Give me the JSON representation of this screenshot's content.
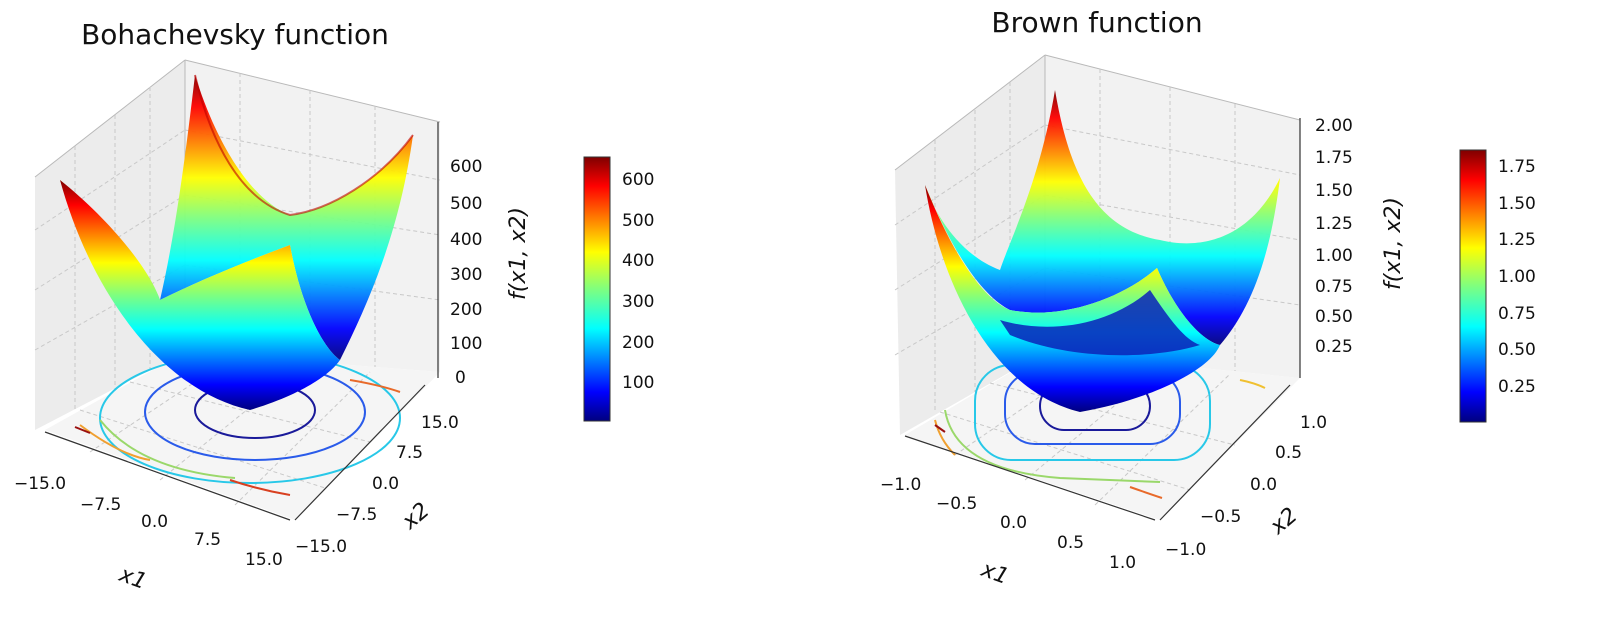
{
  "chart_data": [
    {
      "type": "surface3d",
      "title": "Bohachevsky function",
      "xlabel": "x1",
      "ylabel": "x2",
      "zlabel": "f(x1, x2)",
      "x_ticks": [
        "−15.0",
        "−7.5",
        "0.0",
        "7.5",
        "15.0"
      ],
      "y_ticks": [
        "−15.0",
        "−7.5",
        "0.0",
        "7.5",
        "15.0"
      ],
      "z_ticks": [
        "0",
        "100",
        "200",
        "300",
        "400",
        "500",
        "600"
      ],
      "xlim": [
        -17,
        17
      ],
      "ylim": [
        -17,
        17
      ],
      "zlim": [
        0,
        650
      ],
      "colorbar_ticks": [
        "100",
        "200",
        "300",
        "400",
        "500",
        "600"
      ],
      "colorbar_range": [
        0,
        650
      ],
      "colormap": "jet",
      "contours": true
    },
    {
      "type": "surface3d",
      "title": "Brown function",
      "xlabel": "x1",
      "ylabel": "x2",
      "zlabel": "f(x1, x2)",
      "x_ticks": [
        "−1.0",
        "−0.5",
        "0.0",
        "0.5",
        "1.0"
      ],
      "y_ticks": [
        "−1.0",
        "−0.5",
        "0.0",
        "0.5",
        "1.0"
      ],
      "z_ticks": [
        "0.25",
        "0.50",
        "0.75",
        "1.00",
        "1.25",
        "1.50",
        "1.75",
        "2.00"
      ],
      "xlim": [
        -1.1,
        1.1
      ],
      "ylim": [
        -1.1,
        1.1
      ],
      "zlim": [
        0,
        2.0
      ],
      "colorbar_ticks": [
        "0.25",
        "0.50",
        "0.75",
        "1.00",
        "1.25",
        "1.50",
        "1.75"
      ],
      "colorbar_range": [
        0,
        1.85
      ],
      "colormap": "jet",
      "contours": true
    }
  ]
}
